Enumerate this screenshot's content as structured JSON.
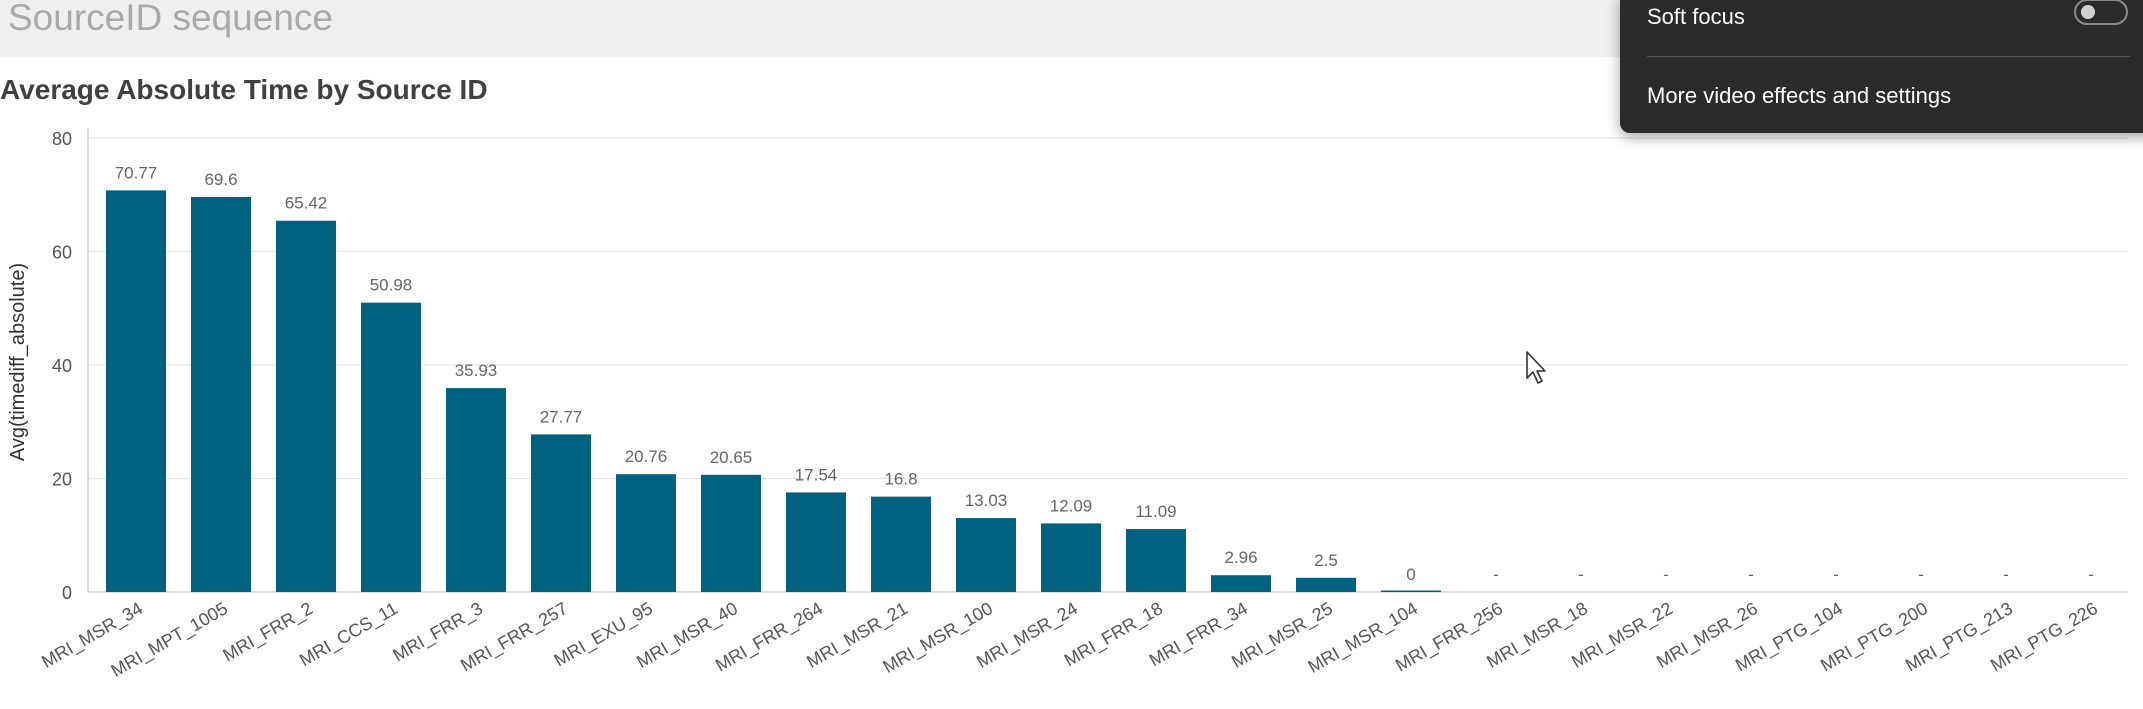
{
  "page": {
    "heading": "SourceID sequence"
  },
  "overlay": {
    "soft_focus_label": "Soft focus",
    "soft_focus_on": false,
    "more_effects_label": "More video effects and settings"
  },
  "colors": {
    "bar": "#00627f",
    "axis_text": "#555555",
    "grid": "#e6e6e6",
    "label": "#666666"
  },
  "chart_data": {
    "type": "bar",
    "title": "Average Absolute Time by Source ID",
    "ylabel": "Avg(timediff_absolute)",
    "xlabel": "",
    "ylim": [
      0,
      80
    ],
    "yticks": [
      0,
      20,
      40,
      60,
      80
    ],
    "grid": true,
    "categories": [
      "MRI_MSR_34",
      "MRI_MPT_1005",
      "MRI_FRR_2",
      "MRI_CCS_11",
      "MRI_FRR_3",
      "MRI_FRR_257",
      "MRI_EXU_95",
      "MRI_MSR_40",
      "MRI_FRR_264",
      "MRI_MSR_21",
      "MRI_MSR_100",
      "MRI_MSR_24",
      "MRI_FRR_18",
      "MRI_FRR_34",
      "MRI_MSR_25",
      "MRI_MSR_104",
      "MRI_FRR_256",
      "MRI_MSR_18",
      "MRI_MSR_22",
      "MRI_MSR_26",
      "MRI_PTG_104",
      "MRI_PTG_200",
      "MRI_PTG_213",
      "MRI_PTG_226"
    ],
    "values": [
      70.77,
      69.6,
      65.42,
      50.98,
      35.93,
      27.77,
      20.76,
      20.65,
      17.54,
      16.8,
      13.03,
      12.09,
      11.09,
      2.96,
      2.5,
      0,
      null,
      null,
      null,
      null,
      null,
      null,
      null,
      null
    ],
    "data_labels": [
      "70.77",
      "69.6",
      "65.42",
      "50.98",
      "35.93",
      "27.77",
      "20.76",
      "20.65",
      "17.54",
      "16.8",
      "13.03",
      "12.09",
      "11.09",
      "2.96",
      "2.5",
      "0",
      "-",
      "-",
      "-",
      "-",
      "-",
      "-",
      "-",
      "-"
    ]
  }
}
